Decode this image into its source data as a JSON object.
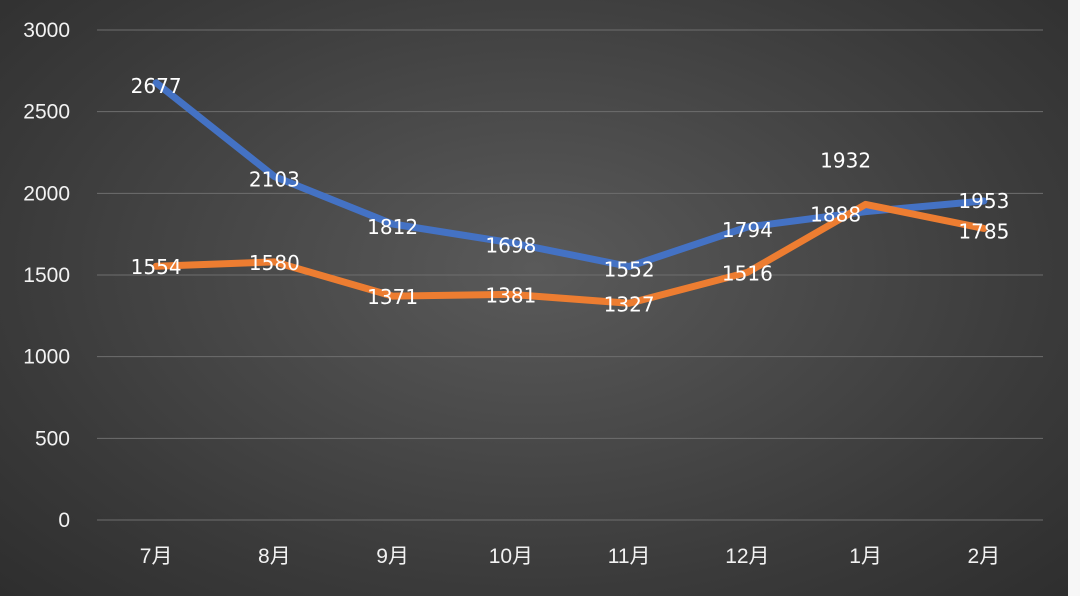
{
  "chart_data": {
    "type": "line",
    "title": "",
    "xlabel": "",
    "ylabel": "",
    "categories": [
      "7月",
      "8月",
      "9月",
      "10月",
      "11月",
      "12月",
      "1月",
      "2月"
    ],
    "ylim": [
      0,
      3000
    ],
    "yticks": [
      "0",
      "500",
      "1000",
      "1500",
      "2000",
      "2500",
      "3000"
    ],
    "grid": true,
    "legend": "none",
    "series": [
      {
        "color": "#4472c4",
        "values": [
          2677,
          2103,
          1812,
          1698,
          1552,
          1794,
          1888,
          1953
        ],
        "labels": [
          "2677",
          "2103",
          "1812",
          "1698",
          "1552",
          "1794",
          "1888",
          "1953"
        ]
      },
      {
        "color": "#ed7d31",
        "values": [
          1554,
          1580,
          1371,
          1381,
          1327,
          1516,
          1932,
          1785
        ],
        "labels": [
          "1554",
          "1580",
          "1371",
          "1381",
          "1327",
          "1516",
          "1932",
          "1785"
        ]
      }
    ]
  }
}
